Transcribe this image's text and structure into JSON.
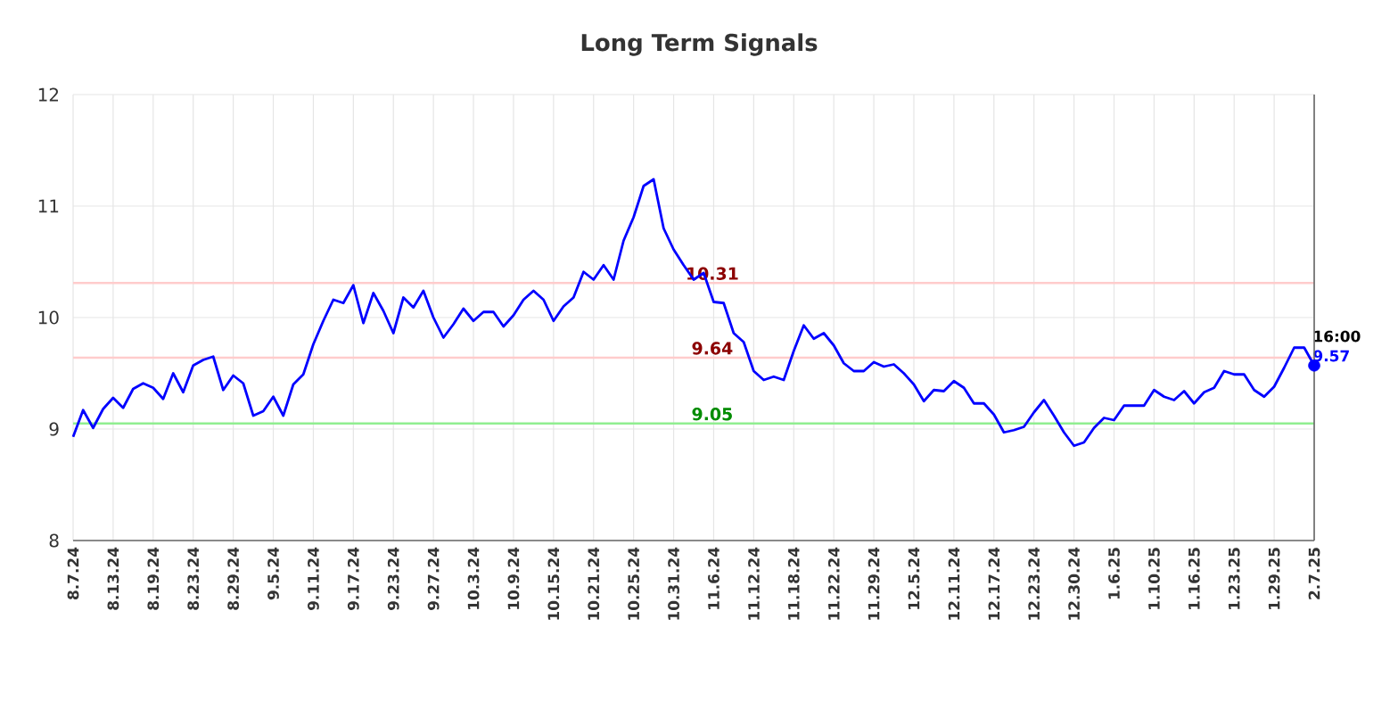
{
  "chart_data": {
    "type": "line",
    "title": "Long Term Signals",
    "categories": [
      "8.7.24",
      null,
      null,
      null,
      "8.13.24",
      null,
      null,
      null,
      "8.19.24",
      null,
      null,
      null,
      "8.23.24",
      null,
      null,
      null,
      "8.29.24",
      null,
      null,
      null,
      "9.5.24",
      null,
      null,
      null,
      "9.11.24",
      null,
      null,
      null,
      "9.17.24",
      null,
      null,
      null,
      "9.23.24",
      null,
      null,
      null,
      "9.27.24",
      null,
      null,
      null,
      "10.3.24",
      null,
      null,
      null,
      "10.9.24",
      null,
      null,
      null,
      "10.15.24",
      null,
      null,
      null,
      "10.21.24",
      null,
      null,
      null,
      "10.25.24",
      null,
      null,
      null,
      "10.31.24",
      null,
      null,
      null,
      "11.6.24",
      null,
      null,
      null,
      "11.12.24",
      null,
      null,
      null,
      "11.18.24",
      null,
      null,
      null,
      "11.22.24",
      null,
      null,
      null,
      "11.29.24",
      null,
      null,
      null,
      "12.5.24",
      null,
      null,
      null,
      "12.11.24",
      null,
      null,
      null,
      "12.17.24",
      null,
      null,
      null,
      "12.23.24",
      null,
      null,
      null,
      "12.30.24",
      null,
      null,
      null,
      "1.6.25",
      null,
      null,
      null,
      "1.10.25",
      null,
      null,
      null,
      "1.16.25",
      null,
      null,
      null,
      "1.23.25",
      null,
      null,
      null,
      "1.29.25",
      null,
      null,
      null,
      "2.7.25"
    ],
    "series": [
      {
        "color": "#0000ff",
        "line_style": "solid",
        "values": [
          8.93,
          9.17,
          9.01,
          9.18,
          9.28,
          9.19,
          9.36,
          9.41,
          9.37,
          9.27,
          9.5,
          9.33,
          9.57,
          9.62,
          9.65,
          9.35,
          9.48,
          9.41,
          9.12,
          9.16,
          9.29,
          9.12,
          9.4,
          9.49,
          9.76,
          9.97,
          10.16,
          10.13,
          10.29,
          9.95,
          10.22,
          10.06,
          9.86,
          10.18,
          10.09,
          10.24,
          10.0,
          9.82,
          9.94,
          10.08,
          9.97,
          10.05,
          10.05,
          9.92,
          10.02,
          10.16,
          10.24,
          10.16,
          9.97,
          10.1,
          10.18,
          10.41,
          10.34,
          10.47,
          10.34,
          10.69,
          10.9,
          11.18,
          11.24,
          10.8,
          10.61,
          10.47,
          10.34,
          10.4,
          10.14,
          10.13,
          9.86,
          9.78,
          9.52,
          9.44,
          9.47,
          9.44,
          9.7,
          9.93,
          9.81,
          9.86,
          9.75,
          9.59,
          9.52,
          9.52,
          9.6,
          9.56,
          9.58,
          9.5,
          9.4,
          9.25,
          9.35,
          9.34,
          9.43,
          9.37,
          9.23,
          9.23,
          9.13,
          8.97,
          8.99,
          9.02,
          9.15,
          9.26,
          9.12,
          8.97,
          8.85,
          8.88,
          9.01,
          9.1,
          9.08,
          9.21,
          9.21,
          9.21,
          9.35,
          9.29,
          9.26,
          9.34,
          9.23,
          9.33,
          9.37,
          9.52,
          9.49,
          9.49,
          9.35,
          9.29,
          9.38,
          9.55,
          9.73,
          9.73,
          9.57
        ]
      },
      {
        "type": "scatter",
        "color": "#0000ff",
        "marker": "circle",
        "x": [
          "2.7.25"
        ],
        "values": [
          9.57
        ]
      }
    ],
    "ylim": [
      8,
      12
    ],
    "yticks": [
      8,
      9,
      10,
      11,
      12
    ],
    "grid": true,
    "ref_lines": [
      {
        "axis": "y",
        "value": 10.31,
        "label": "10.31",
        "color": "#ffcccc"
      },
      {
        "axis": "y",
        "value": 9.64,
        "label": "9.64",
        "color": "#ffcccc"
      },
      {
        "axis": "y",
        "value": 9.05,
        "label": "9.05",
        "color": "#90ee90"
      }
    ],
    "annotations": [
      {
        "text": "16:00",
        "x": "2.7.25",
        "y": 9.57
      },
      {
        "text": "9.57",
        "x": "2.7.25",
        "y": 9.57
      }
    ]
  }
}
